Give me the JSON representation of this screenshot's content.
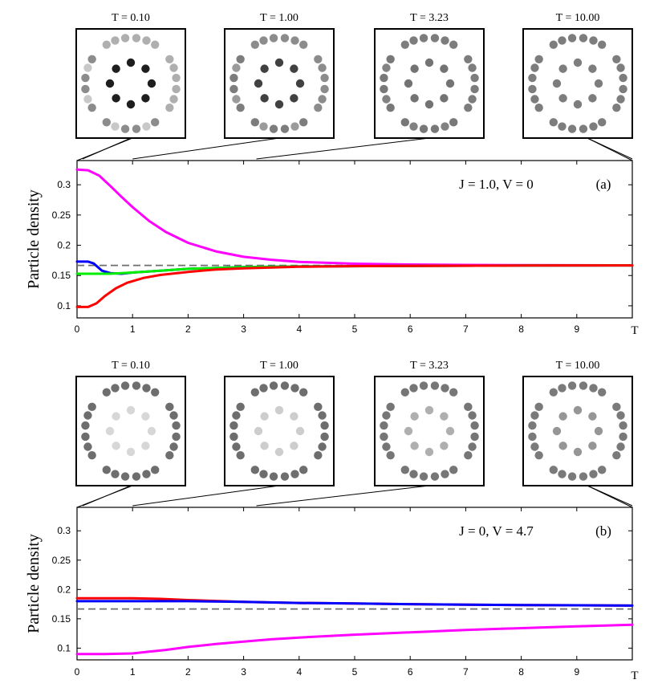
{
  "chart_data": [
    {
      "type": "line",
      "panel_label": "(a)",
      "annotation": "J = 1.0, V = 0",
      "ylabel": "Particle density",
      "xlabel": "T",
      "xlim": [
        0,
        10
      ],
      "ylim": [
        0.08,
        0.34
      ],
      "x_ticks": [
        "0",
        "1",
        "2",
        "3",
        "4",
        "5",
        "6",
        "7",
        "8",
        "9"
      ],
      "y_ticks": [
        "0.1",
        "0.15",
        "0.2",
        "0.25",
        "0.3"
      ],
      "reference_line": {
        "y": 0.1667,
        "style": "dashed",
        "color": "#6e6e6e"
      },
      "insets": [
        {
          "title": "T = 0.10",
          "T": 0.1,
          "outer_shade": [
            175,
            200,
            140
          ],
          "inner_shade": 30
        },
        {
          "title": "T = 1.00",
          "T": 1.0,
          "outer_shade": [
            140,
            155,
            125
          ],
          "inner_shade": 65
        },
        {
          "title": "T = 3.23",
          "T": 3.23,
          "outer_shade": [
            125,
            130,
            120
          ],
          "inner_shade": 115
        },
        {
          "title": "T = 10.00",
          "T": 10.0,
          "outer_shade": [
            125,
            125,
            125
          ],
          "inner_shade": 125
        }
      ],
      "series": [
        {
          "color": "#ff00ff",
          "x": [
            0,
            0.2,
            0.4,
            0.6,
            0.8,
            1,
            1.3,
            1.6,
            2,
            2.5,
            3,
            3.5,
            4,
            5,
            6,
            7,
            8,
            9,
            10
          ],
          "y": [
            0.325,
            0.324,
            0.315,
            0.298,
            0.28,
            0.263,
            0.24,
            0.222,
            0.204,
            0.19,
            0.181,
            0.176,
            0.1725,
            0.1695,
            0.1682,
            0.1676,
            0.1672,
            0.167,
            0.1669
          ]
        },
        {
          "color": "#0000ff",
          "x": [
            0,
            0.2,
            0.3,
            0.45,
            0.6,
            0.8,
            1,
            1.5,
            2,
            3,
            4,
            6,
            8,
            10
          ],
          "y": [
            0.173,
            0.173,
            0.17,
            0.158,
            0.154,
            0.153,
            0.155,
            0.158,
            0.161,
            0.164,
            0.165,
            0.166,
            0.1665,
            0.1667
          ]
        },
        {
          "color": "#00ee00",
          "x": [
            0,
            0.2,
            0.4,
            0.6,
            0.8,
            1,
            1.5,
            2,
            3,
            4,
            6,
            8,
            10
          ],
          "y": [
            0.153,
            0.153,
            0.153,
            0.153,
            0.154,
            0.155,
            0.158,
            0.161,
            0.164,
            0.165,
            0.166,
            0.1665,
            0.1667
          ]
        },
        {
          "color": "#ff0000",
          "x": [
            0,
            0.2,
            0.35,
            0.5,
            0.7,
            0.9,
            1.2,
            1.5,
            2,
            2.5,
            3,
            4,
            5,
            6,
            8,
            10
          ],
          "y": [
            0.098,
            0.098,
            0.104,
            0.116,
            0.129,
            0.138,
            0.146,
            0.151,
            0.156,
            0.16,
            0.162,
            0.1645,
            0.1655,
            0.166,
            0.1665,
            0.1667
          ]
        }
      ]
    },
    {
      "type": "line",
      "panel_label": "(b)",
      "annotation": "J = 0, V = 4.7",
      "ylabel": "Particle density",
      "xlabel": "T",
      "xlim": [
        0,
        10
      ],
      "ylim": [
        0.08,
        0.34
      ],
      "x_ticks": [
        "0",
        "1",
        "2",
        "3",
        "4",
        "5",
        "6",
        "7",
        "8",
        "9"
      ],
      "y_ticks": [
        "0.1",
        "0.15",
        "0.2",
        "0.25",
        "0.3"
      ],
      "reference_line": {
        "y": 0.1667,
        "style": "dashed",
        "color": "#6e6e6e"
      },
      "insets": [
        {
          "title": "T = 0.10",
          "T": 0.1,
          "outer_shade": [
            110,
            110,
            110
          ],
          "inner_shade": 215
        },
        {
          "title": "T = 1.00",
          "T": 1.0,
          "outer_shade": [
            110,
            110,
            110
          ],
          "inner_shade": 205
        },
        {
          "title": "T = 3.23",
          "T": 3.23,
          "outer_shade": [
            118,
            118,
            118
          ],
          "inner_shade": 175
        },
        {
          "title": "T = 10.00",
          "T": 10.0,
          "outer_shade": [
            122,
            122,
            122
          ],
          "inner_shade": 150
        }
      ],
      "series": [
        {
          "color": "#ff0000",
          "x": [
            0,
            0.5,
            1,
            1.5,
            2,
            3,
            4,
            5,
            6,
            7,
            8,
            9,
            10
          ],
          "y": [
            0.185,
            0.185,
            0.185,
            0.184,
            0.182,
            0.179,
            0.177,
            0.176,
            0.175,
            0.174,
            0.1735,
            0.173,
            0.1725
          ]
        },
        {
          "color": "#0000ff",
          "x": [
            0,
            0.5,
            1,
            1.5,
            2,
            3,
            4,
            5,
            6,
            7,
            8,
            9,
            10
          ],
          "y": [
            0.18,
            0.18,
            0.18,
            0.18,
            0.18,
            0.179,
            0.177,
            0.176,
            0.175,
            0.174,
            0.1735,
            0.173,
            0.1725
          ]
        },
        {
          "color": "#ff00ff",
          "x": [
            0,
            0.5,
            1,
            1.3,
            1.6,
            2,
            2.5,
            3,
            3.5,
            4,
            5,
            6,
            7,
            8,
            9,
            10
          ],
          "y": [
            0.09,
            0.09,
            0.091,
            0.094,
            0.097,
            0.102,
            0.107,
            0.111,
            0.115,
            0.118,
            0.123,
            0.127,
            0.131,
            0.134,
            0.137,
            0.14
          ]
        }
      ]
    }
  ]
}
